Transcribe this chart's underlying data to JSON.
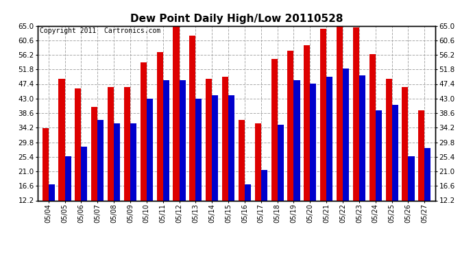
{
  "title": "Dew Point Daily High/Low 20110528",
  "copyright": "Copyright 2011  Cartronics.com",
  "dates": [
    "05/04",
    "05/05",
    "05/06",
    "05/07",
    "05/08",
    "05/09",
    "05/10",
    "05/11",
    "05/12",
    "05/13",
    "05/14",
    "05/15",
    "05/16",
    "05/17",
    "05/18",
    "05/19",
    "05/20",
    "05/21",
    "05/22",
    "05/23",
    "05/24",
    "05/25",
    "05/26",
    "05/27"
  ],
  "highs": [
    34.0,
    49.0,
    46.0,
    40.5,
    46.5,
    46.5,
    54.0,
    57.0,
    65.0,
    62.0,
    49.0,
    49.5,
    36.5,
    35.5,
    55.0,
    57.5,
    59.0,
    64.0,
    65.0,
    64.5,
    56.5,
    49.0,
    46.5,
    39.5
  ],
  "lows": [
    17.0,
    25.5,
    28.5,
    36.5,
    35.5,
    35.5,
    43.0,
    48.5,
    48.5,
    43.0,
    44.0,
    44.0,
    17.0,
    21.5,
    35.0,
    48.5,
    47.5,
    49.5,
    52.0,
    50.0,
    39.5,
    41.0,
    25.5,
    28.0
  ],
  "bar_color_high": "#dd0000",
  "bar_color_low": "#0000cc",
  "background_color": "#ffffff",
  "grid_color": "#aaaaaa",
  "yticks": [
    12.2,
    16.6,
    21.0,
    25.4,
    29.8,
    34.2,
    38.6,
    43.0,
    47.4,
    51.8,
    56.2,
    60.6,
    65.0
  ],
  "ylim_low": 12.2,
  "ylim_high": 65.0,
  "title_fontsize": 11,
  "copyright_fontsize": 7
}
